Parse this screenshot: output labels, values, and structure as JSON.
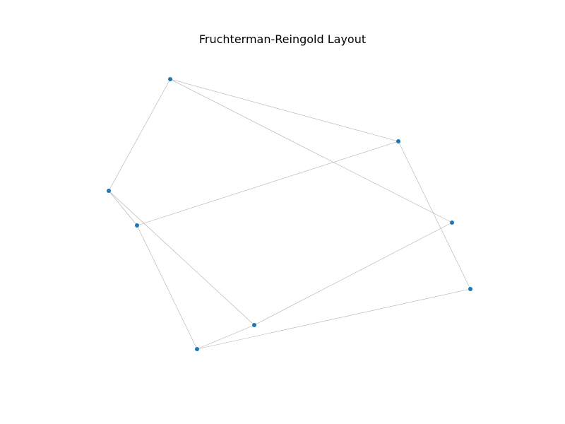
{
  "figure": {
    "title": "Fruchterman-Reingold Layout"
  },
  "colors": {
    "node": "#1f77b4",
    "edge": "#b0b0b0",
    "background": "#ffffff"
  },
  "graph": {
    "nodes": [
      {
        "id": "n1"
      },
      {
        "id": "n2"
      },
      {
        "id": "n3"
      },
      {
        "id": "n4"
      },
      {
        "id": "n5"
      },
      {
        "id": "n6"
      },
      {
        "id": "n7"
      },
      {
        "id": "n8"
      }
    ],
    "edges": [
      [
        "n1",
        "n2"
      ],
      [
        "n1",
        "n3"
      ],
      [
        "n1",
        "n5"
      ],
      [
        "n2",
        "n4"
      ],
      [
        "n2",
        "n7"
      ],
      [
        "n3",
        "n4"
      ],
      [
        "n3",
        "n6"
      ],
      [
        "n4",
        "n8"
      ],
      [
        "n5",
        "n7"
      ],
      [
        "n6",
        "n8"
      ],
      [
        "n7",
        "n8"
      ]
    ]
  }
}
